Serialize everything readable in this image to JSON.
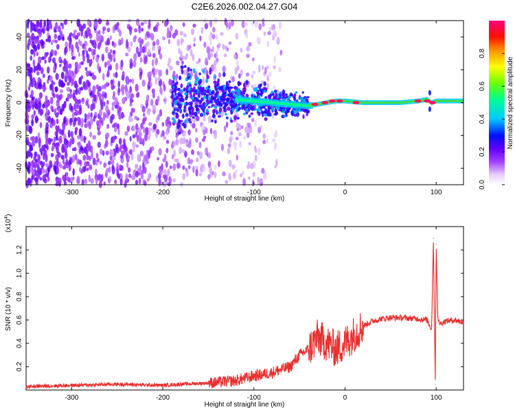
{
  "title": "C2E6.2026.002.04.27.G04",
  "chart_data": [
    {
      "type": "heatmap",
      "xlabel": "Height of straight line (km)",
      "ylabel": "Frequency (Hz)",
      "xlim": [
        -350,
        130
      ],
      "ylim": [
        -50,
        50
      ],
      "x_ticks": [
        -300,
        -200,
        -100,
        0,
        100
      ],
      "x_tick_labels": [
        "-300",
        "-200",
        "-100",
        "0",
        "100"
      ],
      "y_ticks": [
        -40,
        -20,
        0,
        20,
        40
      ],
      "y_tick_labels": [
        "-40",
        "-20",
        "0",
        "20",
        "40"
      ],
      "colorbar": {
        "label": "Normalized spectral amplitude",
        "range": [
          0,
          1
        ],
        "ticks": [
          0.0,
          0.2,
          0.4,
          0.6,
          0.8
        ],
        "tick_labels": [
          "0.0",
          "0.2",
          "0.4",
          "0.6",
          "0.8"
        ],
        "colormap": [
          "#ffffff",
          "#e0c8ff",
          "#9b3bff",
          "#5a00ff",
          "#0000ff",
          "#00c8ff",
          "#00ff80",
          "#80ff00",
          "#ffff00",
          "#ff8000",
          "#ff0000",
          "#ff0080"
        ]
      },
      "signal_trace": {
        "x": [
          -180,
          -150,
          -120,
          -100,
          -80,
          -60,
          -40,
          -30,
          -20,
          -10,
          0,
          20,
          40,
          60,
          80,
          90,
          95,
          100,
          130
        ],
        "frequency": [
          5,
          4,
          2,
          1,
          0,
          -1,
          -2,
          -1,
          0,
          1,
          1,
          0,
          0,
          0,
          1,
          2,
          0,
          1,
          1
        ]
      },
      "noise_region": {
        "x_range": [
          -350,
          -80
        ],
        "frequency_range": [
          -50,
          50
        ]
      }
    },
    {
      "type": "line",
      "xlabel": "Height of straight line (km)",
      "ylabel": "SNR (10 * v/v)",
      "y_multiplier_label": "(x10",
      "y_multiplier_exp": "4",
      "y_multiplier_close": ")",
      "xlim": [
        -350,
        130
      ],
      "ylim": [
        0,
        14000
      ],
      "x_ticks": [
        -300,
        -200,
        -100,
        0,
        100
      ],
      "x_tick_labels": [
        "-300",
        "-200",
        "-100",
        "0",
        "100"
      ],
      "y_ticks": [
        2000,
        4000,
        6000,
        8000,
        10000,
        12000
      ],
      "y_tick_labels": [
        "0.2",
        "0.4",
        "0.6",
        "0.8",
        "1.0",
        "1.2"
      ],
      "series": [
        {
          "color": "#e83030",
          "x": [
            -350,
            -300,
            -250,
            -200,
            -180,
            -150,
            -120,
            -100,
            -80,
            -60,
            -50,
            -40,
            -30,
            -20,
            -10,
            0,
            10,
            20,
            30,
            40,
            50,
            60,
            80,
            90,
            95,
            97,
            98,
            99,
            100,
            102,
            105,
            110,
            120,
            130
          ],
          "y": [
            300,
            400,
            500,
            400,
            500,
            600,
            800,
            1200,
            1500,
            2000,
            3000,
            3500,
            4500,
            4000,
            3500,
            4000,
            4800,
            5500,
            5900,
            6100,
            6200,
            6200,
            6100,
            6000,
            5200,
            13000,
            7000,
            500,
            12500,
            5900,
            5700,
            5900,
            6000,
            5800
          ]
        }
      ]
    }
  ]
}
